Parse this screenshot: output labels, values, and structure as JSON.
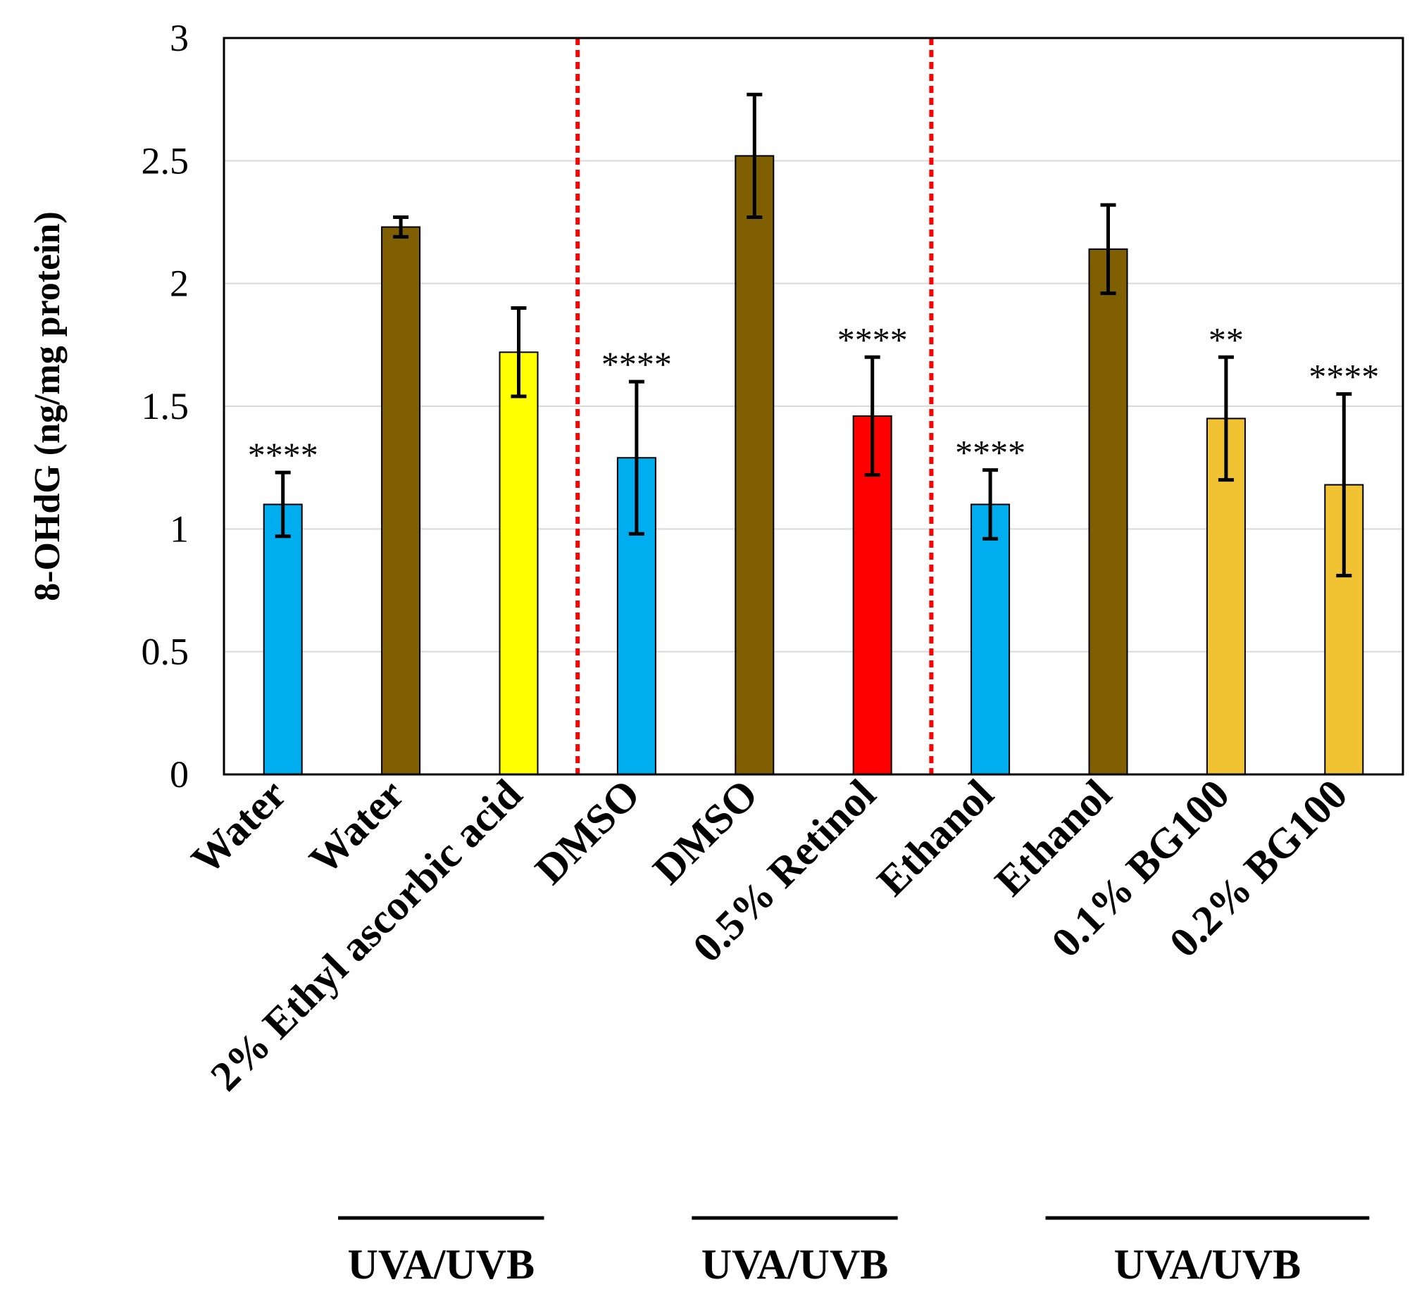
{
  "chart_data": {
    "type": "bar",
    "title": "",
    "xlabel": "",
    "ylabel": "8-OHdG (ng/mg protein)",
    "ylim": [
      0,
      3
    ],
    "yticks": [
      "0",
      "0.5",
      "1",
      "1.5",
      "2",
      "2.5",
      "3"
    ],
    "categories": [
      "Water",
      "Water",
      "2% Ethyl ascorbic acid",
      "DMSO",
      "DMSO",
      "0.5% Retinol",
      "Ethanol",
      "Ethanol",
      "0.1% BG100",
      "0.2% BG100"
    ],
    "values": [
      1.1,
      2.23,
      1.72,
      1.29,
      2.52,
      1.46,
      1.1,
      2.14,
      1.45,
      1.18
    ],
    "errors": [
      0.13,
      0.04,
      0.18,
      0.31,
      0.25,
      0.24,
      0.14,
      0.18,
      0.25,
      0.37
    ],
    "significance": [
      "****",
      "",
      "",
      "****",
      "",
      "****",
      "****",
      "",
      "**",
      "****"
    ],
    "bar_colors": [
      "#00AEEF",
      "#7F5F00",
      "#FFFF00",
      "#00AEEF",
      "#7F5F00",
      "#FF0000",
      "#00AEEF",
      "#7F5F00",
      "#F1C232",
      "#F1C232"
    ],
    "divider_color": "#FF0000",
    "grid": true,
    "treatment_groups": [
      {
        "label": "UVA/UVB"
      },
      {
        "label": "UVA/UVB"
      },
      {
        "label": "UVA/UVB"
      }
    ]
  }
}
